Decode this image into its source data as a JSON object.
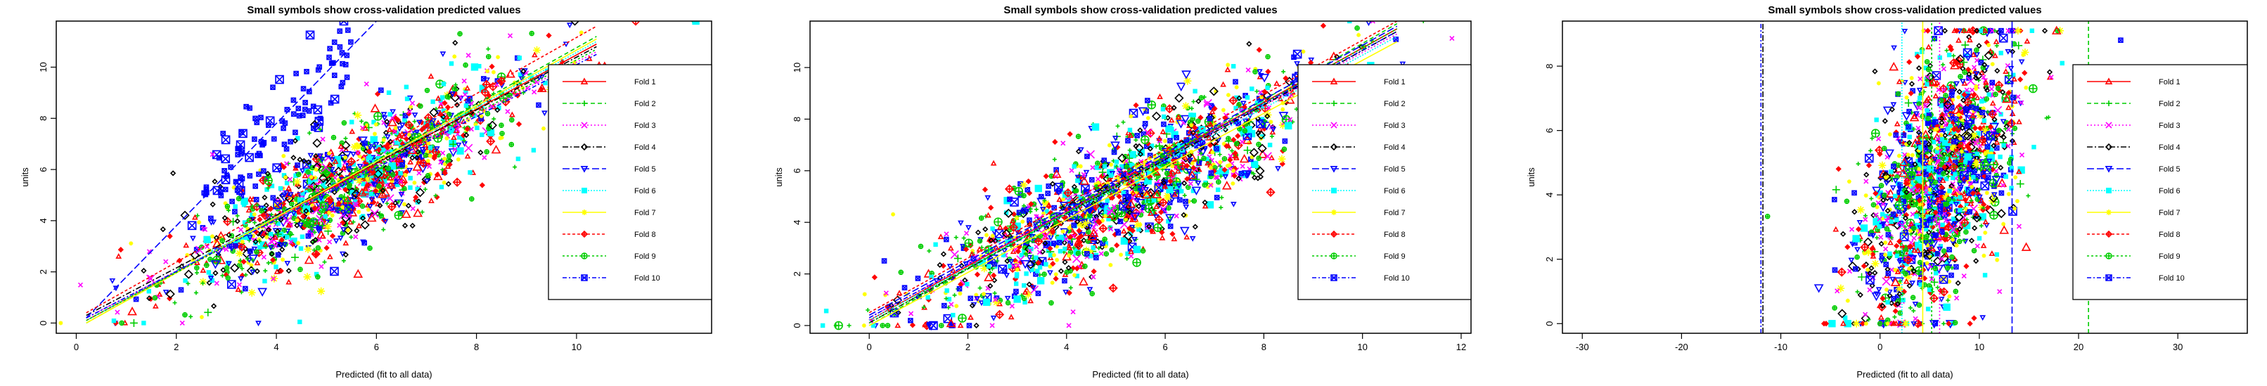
{
  "legend_entries": [
    {
      "label": "Fold 1",
      "color": "#ff0000",
      "dash": "",
      "symbol": "triangle"
    },
    {
      "label": "Fold 2",
      "color": "#00cd00",
      "dash": "6,4",
      "symbol": "plus"
    },
    {
      "label": "Fold 3",
      "color": "#ff00ff",
      "dash": "2,3",
      "symbol": "cross"
    },
    {
      "label": "Fold 4",
      "color": "#000000",
      "dash": "8,3,2,3",
      "symbol": "diamond"
    },
    {
      "label": "Fold 5",
      "color": "#0000ff",
      "dash": "10,4",
      "symbol": "triangle-down"
    },
    {
      "label": "Fold 6",
      "color": "#00ffff",
      "dash": "2,2",
      "symbol": "square-filled"
    },
    {
      "label": "Fold 7",
      "color": "#ffff00",
      "dash": "",
      "symbol": "star"
    },
    {
      "label": "Fold 8",
      "color": "#ff0000",
      "dash": "4,3",
      "symbol": "diamond-plus"
    },
    {
      "label": "Fold 9",
      "color": "#00cd00",
      "dash": "3,3",
      "symbol": "circle-plus"
    },
    {
      "label": "Fold 10",
      "color": "#0000ff",
      "dash": "6,3,2,3",
      "symbol": "square-cross"
    }
  ],
  "chart_data": [
    {
      "type": "scatter",
      "title": "Small symbols show cross-validation predicted values",
      "xlabel": "Predicted (fit to all data)",
      "ylabel": "units",
      "xlim": [
        -0.4,
        12.7
      ],
      "ylim": [
        -0.4,
        11.8
      ],
      "xticks": [
        0,
        2,
        4,
        6,
        8,
        10
      ],
      "yticks": [
        0,
        2,
        4,
        6,
        8,
        10
      ],
      "legend": "right",
      "point_cloud": {
        "x_center": 5.5,
        "x_spread": 1.8,
        "slope": 1.0,
        "y_noise": 1.1,
        "y_max": 11.8
      },
      "fold_lines": [
        {
          "fold": 1,
          "x": [
            0.2,
            10.4
          ],
          "y": [
            0.1,
            10.9
          ]
        },
        {
          "fold": 2,
          "x": [
            0.2,
            10.4
          ],
          "y": [
            0.0,
            11.2
          ]
        },
        {
          "fold": 3,
          "x": [
            0.2,
            10.4
          ],
          "y": [
            0.2,
            10.6
          ]
        },
        {
          "fold": 4,
          "x": [
            0.2,
            10.4
          ],
          "y": [
            0.3,
            10.8
          ]
        },
        {
          "fold": 5,
          "x": [
            0.2,
            6.0
          ],
          "y": [
            0.2,
            11.8
          ]
        },
        {
          "fold": 6,
          "x": [
            0.2,
            10.4
          ],
          "y": [
            0.1,
            11.0
          ]
        },
        {
          "fold": 7,
          "x": [
            0.2,
            10.4
          ],
          "y": [
            0.0,
            11.1
          ]
        },
        {
          "fold": 8,
          "x": [
            0.2,
            10.4
          ],
          "y": [
            0.4,
            11.6
          ]
        },
        {
          "fold": 9,
          "x": [
            0.2,
            10.4
          ],
          "y": [
            0.1,
            10.7
          ]
        },
        {
          "fold": 10,
          "x": [
            0.2,
            10.4
          ],
          "y": [
            0.2,
            10.5
          ]
        }
      ]
    },
    {
      "type": "scatter",
      "title": "Small symbols show cross-validation predicted values",
      "xlabel": "Predicted (fit to all data)",
      "ylabel": "units",
      "xlim": [
        -1.2,
        12.2
      ],
      "ylim": [
        -0.3,
        11.8
      ],
      "xticks": [
        0,
        2,
        4,
        6,
        8,
        10,
        12
      ],
      "yticks": [
        0,
        2,
        4,
        6,
        8,
        10
      ],
      "legend": "right",
      "point_cloud": {
        "x_center": 5.2,
        "x_spread": 2.0,
        "slope": 1.0,
        "y_noise": 1.2,
        "y_max": 11.8
      },
      "fold_lines": [
        {
          "fold": 1,
          "x": [
            0.0,
            10.7
          ],
          "y": [
            0.2,
            11.5
          ]
        },
        {
          "fold": 2,
          "x": [
            0.0,
            10.7
          ],
          "y": [
            0.0,
            11.7
          ]
        },
        {
          "fold": 3,
          "x": [
            0.0,
            10.7
          ],
          "y": [
            0.3,
            11.3
          ]
        },
        {
          "fold": 4,
          "x": [
            0.0,
            10.7
          ],
          "y": [
            0.1,
            11.4
          ]
        },
        {
          "fold": 5,
          "x": [
            0.0,
            10.7
          ],
          "y": [
            0.4,
            11.6
          ]
        },
        {
          "fold": 6,
          "x": [
            0.0,
            10.7
          ],
          "y": [
            0.2,
            11.2
          ]
        },
        {
          "fold": 7,
          "x": [
            0.0,
            10.7
          ],
          "y": [
            0.0,
            11.0
          ]
        },
        {
          "fold": 8,
          "x": [
            0.0,
            10.7
          ],
          "y": [
            0.5,
            11.8
          ]
        },
        {
          "fold": 9,
          "x": [
            0.0,
            10.7
          ],
          "y": [
            0.1,
            11.5
          ]
        },
        {
          "fold": 10,
          "x": [
            0.0,
            10.7
          ],
          "y": [
            0.3,
            11.4
          ]
        }
      ]
    },
    {
      "type": "scatter",
      "title": "Small symbols show cross-validation predicted values",
      "xlabel": "Predicted (fit to all data)",
      "ylabel": "units",
      "xlim": [
        -32,
        37
      ],
      "ylim": [
        -0.3,
        9.4
      ],
      "xticks": [
        -30,
        -20,
        -10,
        0,
        10,
        20,
        30
      ],
      "yticks": [
        0,
        2,
        4,
        6,
        8
      ],
      "legend": "right",
      "point_cloud": {
        "x_center": 6.0,
        "x_spread": 4.5,
        "slope": 0.45,
        "y_noise": 2.0,
        "y_max": 9.1
      },
      "fold_lines": [
        {
          "fold": 4,
          "x": [
            -11.8,
            -11.8
          ],
          "y": [
            -0.3,
            9.4
          ]
        },
        {
          "fold": 10,
          "x": [
            -12.0,
            -12.0
          ],
          "y": [
            -0.3,
            9.4
          ]
        },
        {
          "fold": 5,
          "x": [
            13.3,
            13.3
          ],
          "y": [
            -0.3,
            9.4
          ]
        },
        {
          "fold": 2,
          "x": [
            21.0,
            21.0
          ],
          "y": [
            -0.3,
            9.4
          ]
        },
        {
          "fold": 7,
          "x": [
            4.3,
            4.3
          ],
          "y": [
            -0.3,
            9.4
          ]
        },
        {
          "fold": 3,
          "x": [
            6.0,
            6.0
          ],
          "y": [
            -0.3,
            9.4
          ]
        },
        {
          "fold": 6,
          "x": [
            2.2,
            2.2
          ],
          "y": [
            -0.3,
            9.4
          ]
        },
        {
          "fold": 9,
          "x": [
            5.2,
            5.2
          ],
          "y": [
            -0.3,
            9.4
          ]
        }
      ]
    }
  ]
}
